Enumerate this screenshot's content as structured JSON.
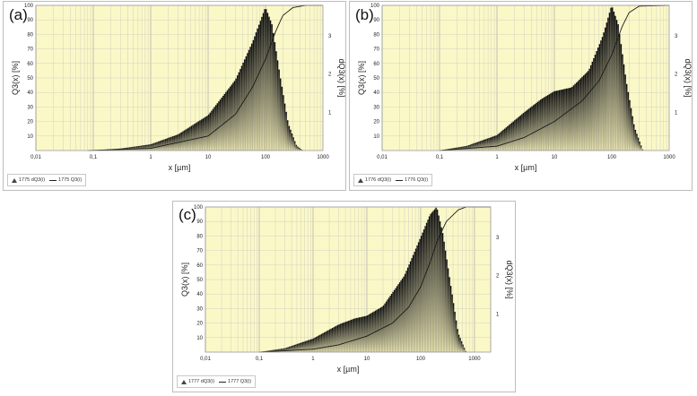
{
  "chart_data": [
    {
      "panel": "(a)",
      "type": "bar",
      "xscale": "log",
      "xlim": [
        0.01,
        1000
      ],
      "ylim_left": [
        0,
        100
      ],
      "ylim_right": [
        0,
        3.8
      ],
      "xlabel": "x [µm]",
      "ylabel": "Q3(x) [%]",
      "y2label": "dQ3(x) [%]",
      "xticks": [
        "0,01",
        "0,1",
        "1",
        "10",
        "100",
        "1000"
      ],
      "yticks": [
        "10",
        "20",
        "30",
        "40",
        "50",
        "60",
        "70",
        "80",
        "90",
        "100"
      ],
      "y2ticks": [
        "1",
        "2",
        "3"
      ],
      "grid": true,
      "background": "#fbf8c8",
      "legend": {
        "position": "bottom-left",
        "entries": [
          "1775 dQ3(i)",
          "1775 Q3(i)"
        ]
      },
      "density": {
        "name": "1775 dQ3(i)",
        "x": [
          0.1,
          0.3,
          1,
          3,
          10,
          30,
          60,
          100,
          130,
          180,
          250,
          350,
          450
        ],
        "y": [
          0,
          0.05,
          0.16,
          0.42,
          0.92,
          1.85,
          2.85,
          3.75,
          3.3,
          1.95,
          0.7,
          0.12,
          0
        ]
      },
      "cumulative": {
        "name": "1775 Q3(i)",
        "x": [
          0.08,
          1,
          10,
          30,
          60,
          100,
          150,
          200,
          300,
          500,
          1000
        ],
        "y": [
          0,
          1.5,
          10,
          25,
          44,
          63,
          82,
          93,
          98.5,
          100,
          100
        ]
      }
    },
    {
      "panel": "(b)",
      "type": "bar",
      "xscale": "log",
      "xlim": [
        0.01,
        1000
      ],
      "ylim_left": [
        0,
        100
      ],
      "ylim_right": [
        0,
        3.8
      ],
      "xlabel": "x [µm]",
      "ylabel": "Q3(x) [%]",
      "y2label": "dQ3(x) [%]",
      "xticks": [
        "0,01",
        "0,1",
        "1",
        "10",
        "100",
        "1000"
      ],
      "yticks": [
        "10",
        "20",
        "30",
        "40",
        "50",
        "60",
        "70",
        "80",
        "90",
        "100"
      ],
      "y2ticks": [
        "1",
        "2",
        "3"
      ],
      "grid": true,
      "background": "#fbf8c8",
      "legend": {
        "position": "bottom-left",
        "entries": [
          "1776 dQ3(i)",
          "1776 Q3(i)"
        ]
      },
      "density": {
        "name": "1776 dQ3(i)",
        "x": [
          0.1,
          0.3,
          1,
          3,
          6,
          10,
          20,
          40,
          70,
          100,
          130,
          180,
          250,
          350
        ],
        "y": [
          0,
          0.12,
          0.4,
          1.0,
          1.35,
          1.55,
          1.65,
          2.1,
          3.0,
          3.8,
          3.3,
          1.8,
          0.6,
          0
        ]
      },
      "cumulative": {
        "name": "1776 Q3(i)",
        "x": [
          0.1,
          1,
          3,
          10,
          30,
          60,
          100,
          150,
          200,
          300,
          1000
        ],
        "y": [
          0,
          3,
          9,
          20,
          34,
          48,
          66,
          85,
          95,
          99.5,
          100
        ]
      }
    },
    {
      "panel": "(c)",
      "type": "bar",
      "xscale": "log",
      "xlim": [
        0.01,
        2000
      ],
      "ylim_left": [
        0,
        100
      ],
      "ylim_right": [
        0,
        3.8
      ],
      "xlabel": "x [µm]",
      "ylabel": "Q3(x) [%]",
      "y2label": "dQ3(x) [%]",
      "xticks": [
        "0,01",
        "0,1",
        "1",
        "10",
        "100",
        "1000"
      ],
      "yticks": [
        "10",
        "20",
        "30",
        "40",
        "50",
        "60",
        "70",
        "80",
        "90",
        "100"
      ],
      "y2ticks": [
        "1",
        "2",
        "3"
      ],
      "grid": true,
      "background": "#fbf8c8",
      "legend": {
        "position": "bottom-left",
        "entries": [
          "1777 dQ3(i)",
          "1777 Q3(i)"
        ]
      },
      "density": {
        "name": "1777 dQ3(i)",
        "x": [
          0.1,
          0.3,
          1,
          3,
          6,
          10,
          20,
          50,
          100,
          150,
          200,
          260,
          350,
          500,
          700
        ],
        "y": [
          0,
          0.1,
          0.35,
          0.72,
          0.88,
          0.95,
          1.2,
          2.0,
          3.0,
          3.6,
          3.8,
          3.1,
          1.9,
          0.5,
          0
        ]
      },
      "cumulative": {
        "name": "1777 Q3(i)",
        "x": [
          0.1,
          1,
          3,
          10,
          30,
          60,
          100,
          150,
          200,
          300,
          500,
          700,
          1000
        ],
        "y": [
          0,
          2,
          5,
          11,
          20,
          31,
          45,
          62,
          76,
          90,
          98,
          100,
          100
        ]
      }
    }
  ]
}
